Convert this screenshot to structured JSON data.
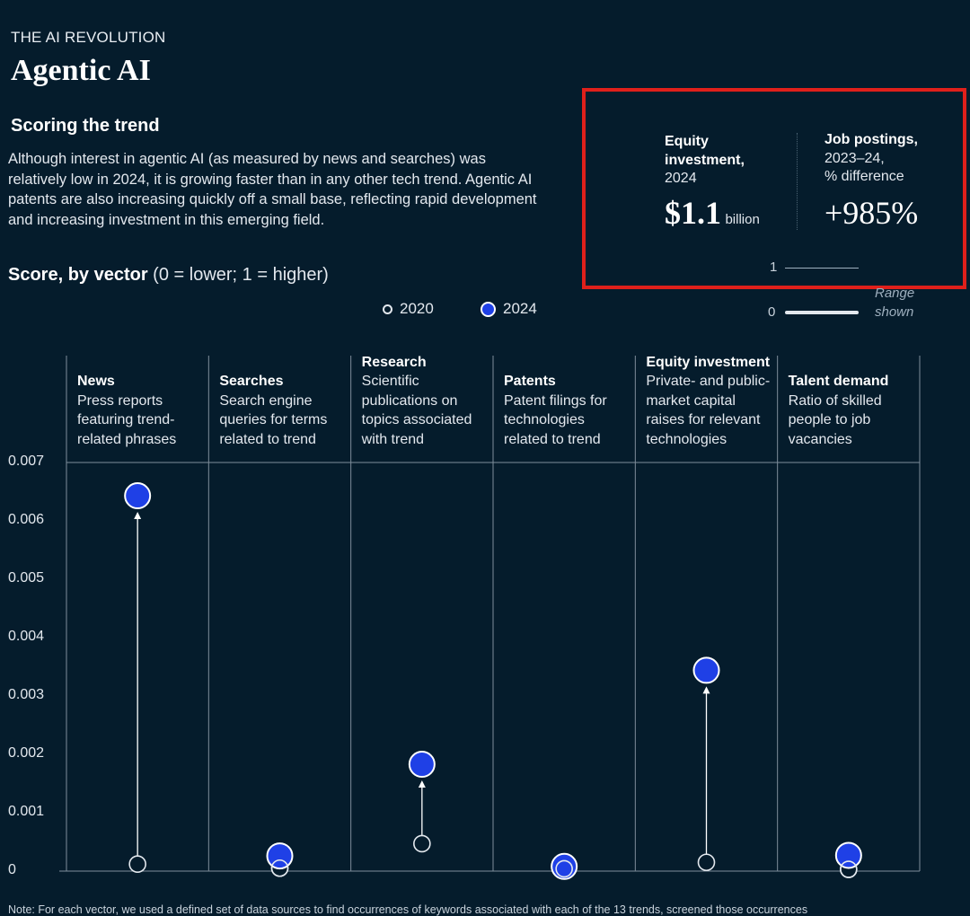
{
  "header": {
    "kicker": "THE AI REVOLUTION",
    "title": "Agentic AI",
    "subhead": "Scoring the trend",
    "body": "Although interest in agentic AI (as measured by news and searches) was relatively low in 2024, it is growing faster than in any other tech trend. Agentic AI patents are also increasing quickly off a small base, reflecting rapid development and increasing investment in this emerging field."
  },
  "score_title": {
    "bold": "Score, by vector",
    "note": " (0 = lower; 1 = higher)"
  },
  "legend": {
    "open_label": "2020",
    "filled_label": "2024"
  },
  "stats": {
    "equity": {
      "label_bold_1": "Equity",
      "label_bold_2": "investment,",
      "label_year": "2024",
      "value": "$1.1",
      "unit": "billion"
    },
    "jobs": {
      "label_bold": "Job postings,",
      "label_line2": "2023–24,",
      "label_line3": "% difference",
      "value": "+985%"
    },
    "range": {
      "top_num": "1",
      "bottom_num": "0",
      "label_line1": "Range",
      "label_line2": "shown"
    }
  },
  "note": "Note: For each vector, we used a defined set of data sources to find occurrences of keywords associated with each of the 13 trends, screened those occurrences",
  "chart_data": {
    "type": "scatter",
    "ylim": [
      0,
      0.007
    ],
    "yticks": [
      "0",
      "0.001",
      "0.002",
      "0.003",
      "0.004",
      "0.005",
      "0.006",
      "0.007"
    ],
    "categories": [
      {
        "name": "News",
        "desc": [
          "Press reports",
          "featuring trend-",
          "related phrases"
        ]
      },
      {
        "name": "Searches",
        "desc": [
          "Search engine",
          "queries for terms",
          "related to trend"
        ]
      },
      {
        "name": "Research",
        "desc": [
          "Scientific",
          "publications on",
          "topics associated",
          "with trend"
        ]
      },
      {
        "name": "Patents",
        "desc": [
          "Patent filings for",
          "technologies",
          "related to trend"
        ]
      },
      {
        "name": "Equity investment",
        "desc": [
          "Private- and public-",
          "market capital",
          "raises for relevant",
          "technologies"
        ]
      },
      {
        "name": "Talent demand",
        "desc": [
          "Ratio of skilled",
          "people to job",
          "vacancies"
        ]
      }
    ],
    "series": [
      {
        "name": "2020",
        "values": [
          0.00012,
          5e-05,
          0.00047,
          4e-05,
          0.00015,
          3e-05
        ]
      },
      {
        "name": "2024",
        "values": [
          0.00643,
          0.00026,
          0.00183,
          8e-05,
          0.00344,
          0.00027
        ]
      }
    ],
    "colors": {
      "2024": "#1f40e6",
      "grid": "#7f8e9b",
      "bg": "#051c2c"
    }
  }
}
